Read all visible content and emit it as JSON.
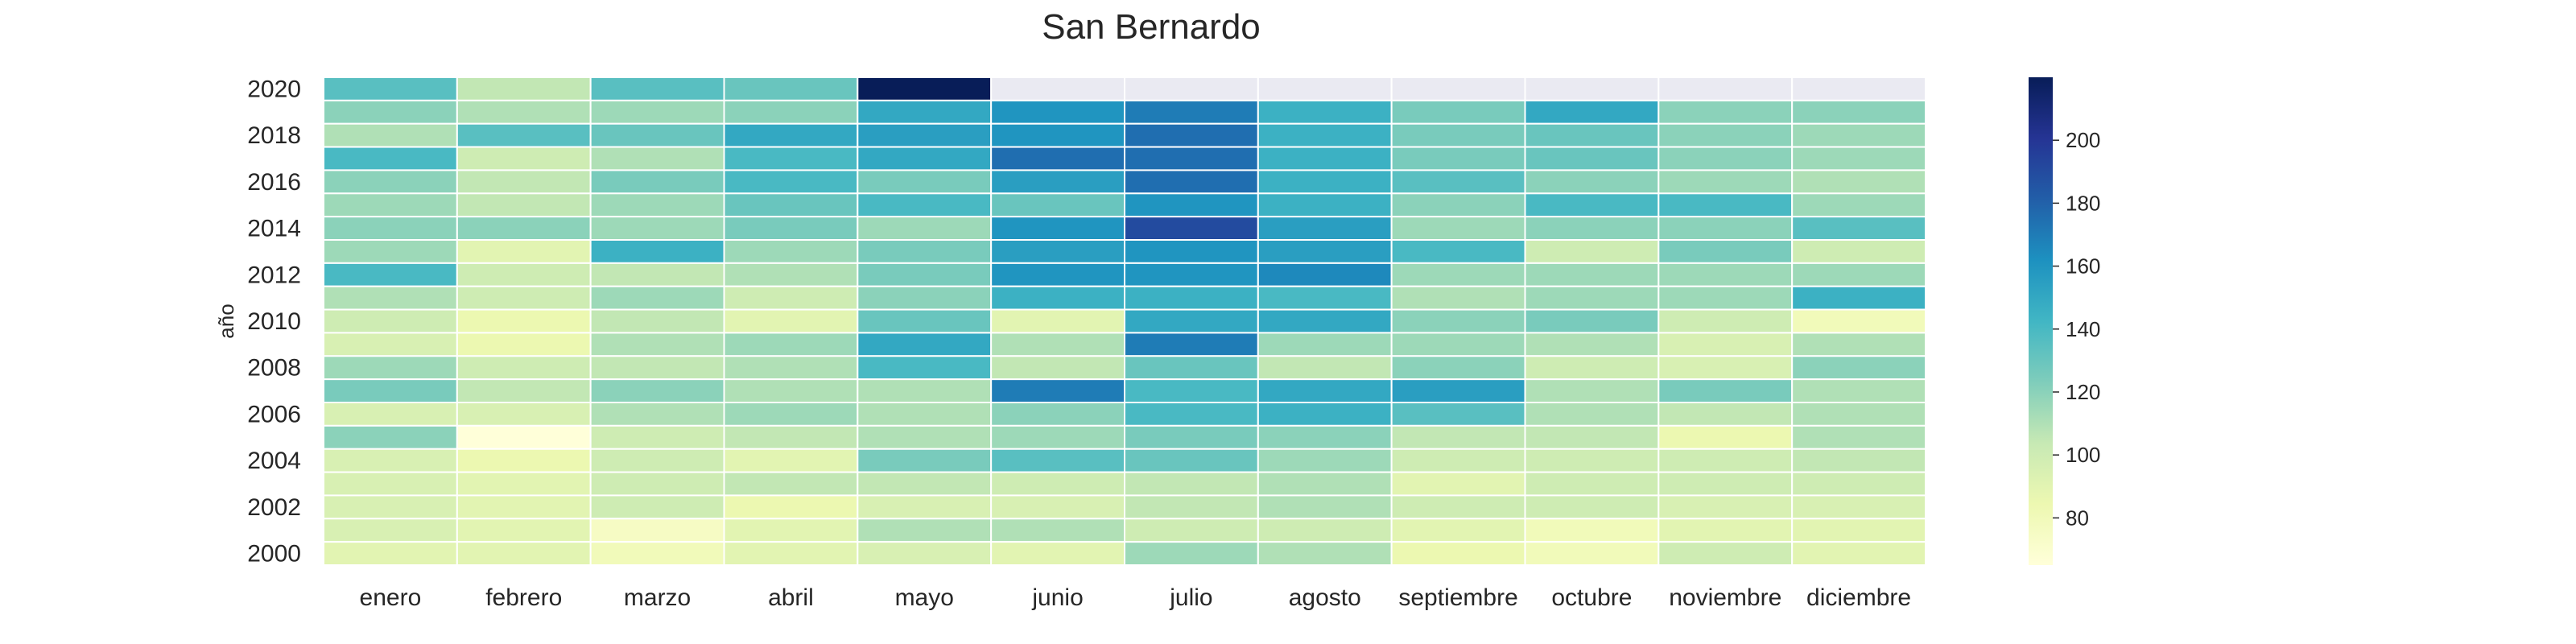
{
  "chart_data": {
    "type": "heatmap",
    "title": "San Bernardo",
    "xlabel": "",
    "ylabel": "año",
    "x_categories": [
      "enero",
      "febrero",
      "marzo",
      "abril",
      "mayo",
      "junio",
      "julio",
      "agosto",
      "septiembre",
      "octubre",
      "noviembre",
      "diciembre"
    ],
    "y_categories": [
      "2020",
      "2019",
      "2018",
      "2017",
      "2016",
      "2015",
      "2014",
      "2013",
      "2012",
      "2011",
      "2010",
      "2009",
      "2008",
      "2007",
      "2006",
      "2005",
      "2004",
      "2003",
      "2002",
      "2001",
      "2000"
    ],
    "y_tick_labels": [
      "2020",
      "2018",
      "2016",
      "2014",
      "2012",
      "2010",
      "2008",
      "2006",
      "2004",
      "2002",
      "2000"
    ],
    "values": [
      [
        135,
        105,
        135,
        130,
        220,
        null,
        null,
        null,
        null,
        null,
        null,
        null
      ],
      [
        120,
        110,
        115,
        120,
        150,
        160,
        170,
        145,
        125,
        150,
        120,
        120
      ],
      [
        110,
        135,
        130,
        150,
        155,
        160,
        175,
        145,
        125,
        130,
        120,
        115
      ],
      [
        140,
        100,
        110,
        140,
        150,
        175,
        175,
        145,
        125,
        130,
        120,
        115
      ],
      [
        120,
        105,
        125,
        140,
        125,
        155,
        175,
        145,
        135,
        120,
        115,
        110
      ],
      [
        115,
        105,
        115,
        130,
        140,
        130,
        160,
        145,
        120,
        140,
        140,
        115
      ],
      [
        120,
        120,
        115,
        125,
        115,
        160,
        190,
        155,
        115,
        120,
        120,
        135
      ],
      [
        115,
        90,
        145,
        115,
        125,
        155,
        160,
        155,
        140,
        100,
        125,
        100
      ],
      [
        140,
        100,
        105,
        110,
        125,
        160,
        160,
        165,
        115,
        115,
        115,
        115
      ],
      [
        110,
        100,
        115,
        100,
        120,
        145,
        145,
        140,
        110,
        115,
        115,
        145
      ],
      [
        100,
        85,
        105,
        90,
        130,
        90,
        150,
        150,
        120,
        125,
        100,
        80
      ],
      [
        95,
        85,
        110,
        115,
        150,
        110,
        170,
        115,
        115,
        110,
        95,
        110
      ],
      [
        115,
        100,
        105,
        110,
        140,
        105,
        130,
        105,
        120,
        100,
        95,
        120
      ],
      [
        125,
        105,
        120,
        110,
        110,
        170,
        140,
        150,
        155,
        110,
        125,
        110
      ],
      [
        95,
        95,
        110,
        115,
        110,
        120,
        140,
        145,
        135,
        110,
        105,
        110
      ],
      [
        120,
        65,
        100,
        105,
        110,
        115,
        125,
        120,
        105,
        105,
        85,
        110
      ],
      [
        95,
        85,
        100,
        90,
        125,
        135,
        130,
        115,
        100,
        100,
        100,
        105
      ],
      [
        95,
        90,
        100,
        105,
        105,
        100,
        105,
        110,
        90,
        100,
        100,
        100
      ],
      [
        95,
        90,
        100,
        85,
        95,
        95,
        105,
        110,
        100,
        100,
        95,
        95
      ],
      [
        95,
        90,
        75,
        90,
        110,
        110,
        100,
        100,
        90,
        80,
        90,
        90
      ],
      [
        90,
        90,
        80,
        90,
        95,
        90,
        115,
        110,
        85,
        80,
        100,
        90
      ]
    ],
    "missing_color": "#eaeaf2",
    "colormap": "YlGnBu",
    "color_range": [
      65,
      220
    ],
    "colorbar_ticks": [
      80,
      100,
      120,
      140,
      160,
      180,
      200
    ],
    "grid": false
  }
}
